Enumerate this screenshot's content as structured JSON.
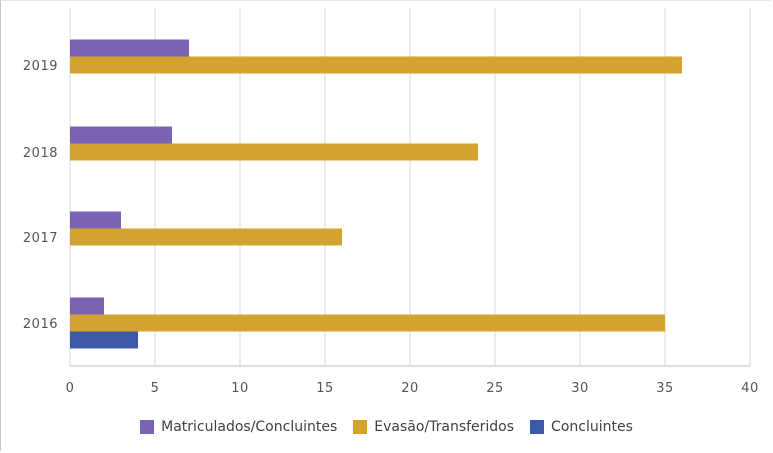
{
  "chart_data": {
    "type": "bar",
    "orientation": "horizontal",
    "categories": [
      "2016",
      "2017",
      "2018",
      "2019"
    ],
    "series": [
      {
        "name": "Matriculados/Concluintes",
        "color": "#7A62B5",
        "values": [
          2,
          3,
          6,
          7
        ]
      },
      {
        "name": "Evasão/Transferidos",
        "color": "#D4A22E",
        "values": [
          35,
          16,
          24,
          36
        ]
      },
      {
        "name": "Concluintes",
        "color": "#3B59A8",
        "values": [
          4,
          null,
          null,
          null
        ]
      }
    ],
    "xlim": [
      0,
      40
    ],
    "xticks": [
      "0",
      "5",
      "10",
      "15",
      "20",
      "25",
      "30",
      "35",
      "40"
    ],
    "grid": "vertical",
    "legend_position": "bottom"
  }
}
